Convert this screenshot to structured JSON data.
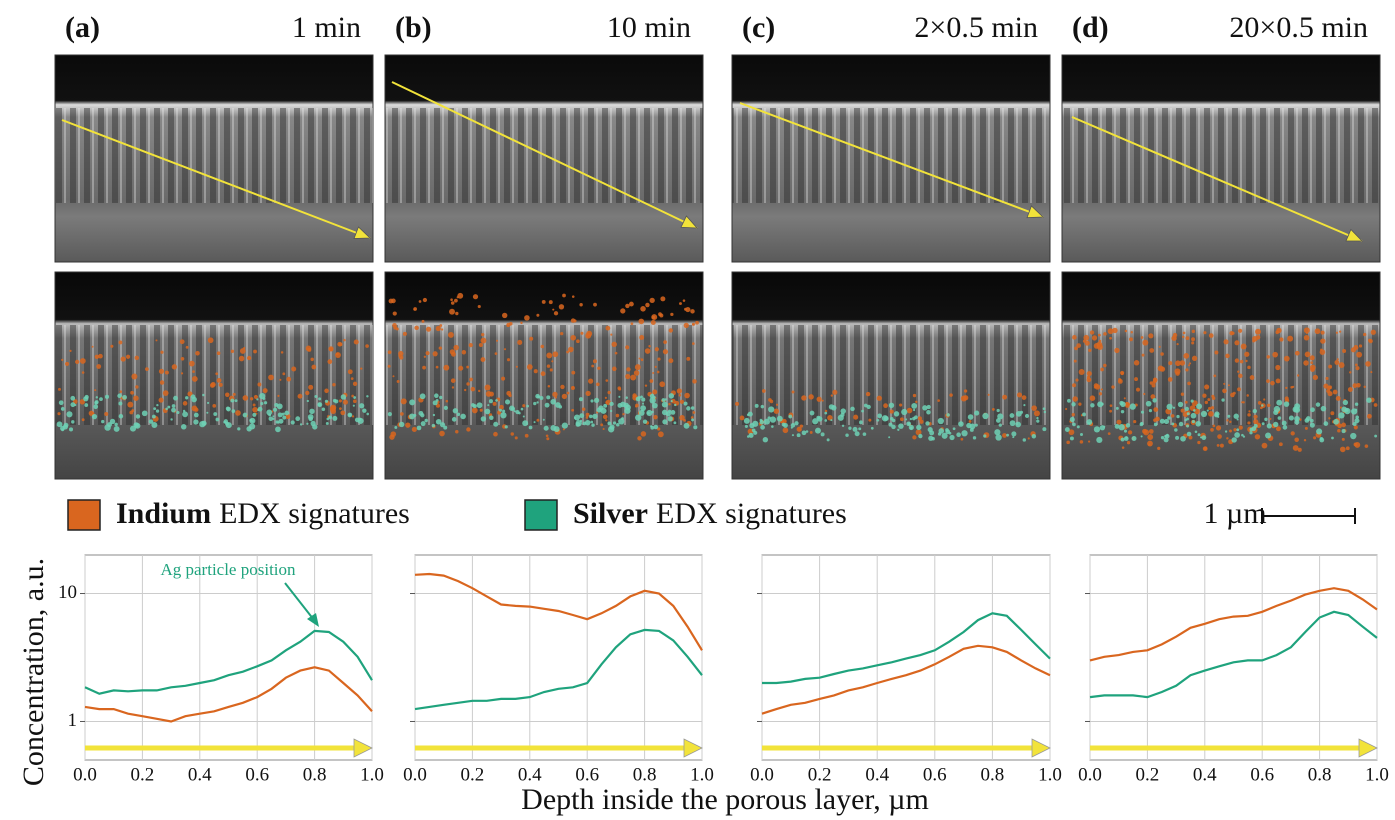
{
  "figure": {
    "panels": [
      {
        "label": "(a)",
        "time": "1 min"
      },
      {
        "label": "(b)",
        "time": "10 min"
      },
      {
        "label": "(c)",
        "time": "2×0.5 min"
      },
      {
        "label": "(d)",
        "time": "20×0.5 min"
      }
    ],
    "legend_suffix": "EDX signatures",
    "scale_bar": "1 µm",
    "ylabel": "Concentration, a.u.",
    "xlabel": "Depth inside the porous layer, µm"
  },
  "chart_data": [
    {
      "type": "line",
      "log_y": true,
      "grid": true,
      "ytick_labels": true,
      "annotation": "Ag particle position",
      "x": [
        0,
        0.05,
        0.1,
        0.15,
        0.2,
        0.25,
        0.3,
        0.35,
        0.4,
        0.45,
        0.5,
        0.55,
        0.6,
        0.65,
        0.7,
        0.75,
        0.8,
        0.85,
        0.9,
        0.95,
        1
      ],
      "series": [
        {
          "name": "Indium",
          "color": "#d9661f",
          "values": [
            1.3,
            1.25,
            1.25,
            1.15,
            1.1,
            1.05,
            1.0,
            1.1,
            1.15,
            1.2,
            1.3,
            1.4,
            1.55,
            1.8,
            2.2,
            2.5,
            2.65,
            2.5,
            2.0,
            1.6,
            1.2
          ]
        },
        {
          "name": "Silver",
          "color": "#1fa37d",
          "values": [
            1.85,
            1.65,
            1.75,
            1.72,
            1.75,
            1.75,
            1.85,
            1.9,
            2.0,
            2.1,
            2.3,
            2.45,
            2.7,
            3.0,
            3.6,
            4.2,
            5.1,
            5.0,
            4.2,
            3.2,
            2.1
          ]
        }
      ],
      "xlim": [
        0,
        1
      ],
      "xticks": [
        {
          "value": 0,
          "label": "0.0"
        },
        0.2,
        0.4,
        0.6,
        0.8,
        {
          "value": 1,
          "label": "1.0"
        }
      ],
      "ylim": [
        0.5,
        20
      ],
      "yticks": [
        1,
        10
      ]
    },
    {
      "type": "line",
      "log_y": true,
      "grid": true,
      "ytick_labels": false,
      "x": [
        0,
        0.05,
        0.1,
        0.15,
        0.2,
        0.25,
        0.3,
        0.35,
        0.4,
        0.45,
        0.5,
        0.55,
        0.6,
        0.65,
        0.7,
        0.75,
        0.8,
        0.85,
        0.9,
        0.95,
        1
      ],
      "series": [
        {
          "color": "#d9661f",
          "values": [
            14,
            14.2,
            13.8,
            12.5,
            11,
            9.5,
            8.2,
            8,
            7.9,
            7.6,
            7.3,
            6.8,
            6.3,
            7,
            8,
            9.5,
            10.5,
            10,
            8,
            5.5,
            3.6
          ]
        },
        {
          "color": "#1fa37d",
          "values": [
            1.25,
            1.3,
            1.35,
            1.4,
            1.45,
            1.45,
            1.5,
            1.5,
            1.55,
            1.7,
            1.8,
            1.85,
            2.0,
            2.8,
            3.8,
            4.8,
            5.2,
            5.1,
            4.3,
            3.2,
            2.3
          ]
        }
      ],
      "xlim": [
        0,
        1
      ],
      "xticks": [
        {
          "value": 0,
          "label": "0.0"
        },
        0.2,
        0.4,
        0.6,
        0.8,
        {
          "value": 1,
          "label": "1.0"
        }
      ],
      "ylim": [
        0.5,
        20
      ],
      "yticks": [
        1,
        10
      ]
    },
    {
      "type": "line",
      "log_y": true,
      "grid": true,
      "ytick_labels": false,
      "x": [
        0,
        0.05,
        0.1,
        0.15,
        0.2,
        0.25,
        0.3,
        0.35,
        0.4,
        0.45,
        0.5,
        0.55,
        0.6,
        0.65,
        0.7,
        0.75,
        0.8,
        0.85,
        0.9,
        0.95,
        1
      ],
      "series": [
        {
          "color": "#d9661f",
          "values": [
            1.15,
            1.25,
            1.35,
            1.4,
            1.5,
            1.6,
            1.75,
            1.85,
            2.0,
            2.15,
            2.3,
            2.5,
            2.8,
            3.2,
            3.7,
            3.9,
            3.8,
            3.5,
            3.0,
            2.6,
            2.3
          ]
        },
        {
          "color": "#1fa37d",
          "values": [
            2.0,
            2.0,
            2.05,
            2.15,
            2.2,
            2.35,
            2.5,
            2.6,
            2.75,
            2.9,
            3.1,
            3.3,
            3.6,
            4.2,
            5.0,
            6.2,
            7.0,
            6.7,
            5.2,
            4.0,
            3.1
          ]
        }
      ],
      "xlim": [
        0,
        1
      ],
      "xticks": [
        {
          "value": 0,
          "label": "0.0"
        },
        0.2,
        0.4,
        0.6,
        0.8,
        {
          "value": 1,
          "label": "1.0"
        }
      ],
      "ylim": [
        0.5,
        20
      ],
      "yticks": [
        1,
        10
      ]
    },
    {
      "type": "line",
      "log_y": true,
      "grid": true,
      "ytick_labels": false,
      "x": [
        0,
        0.05,
        0.1,
        0.15,
        0.2,
        0.25,
        0.3,
        0.35,
        0.4,
        0.45,
        0.5,
        0.55,
        0.6,
        0.65,
        0.7,
        0.75,
        0.8,
        0.85,
        0.9,
        0.95,
        1
      ],
      "series": [
        {
          "color": "#d9661f",
          "values": [
            3.0,
            3.2,
            3.3,
            3.5,
            3.6,
            4.0,
            4.6,
            5.4,
            5.8,
            6.3,
            6.6,
            6.7,
            7.2,
            8.0,
            8.8,
            9.8,
            10.5,
            11.0,
            10.5,
            9.0,
            7.5
          ]
        },
        {
          "color": "#1fa37d",
          "values": [
            1.55,
            1.6,
            1.6,
            1.6,
            1.55,
            1.7,
            1.9,
            2.3,
            2.5,
            2.7,
            2.9,
            3.0,
            3.0,
            3.3,
            3.8,
            5.0,
            6.5,
            7.2,
            6.8,
            5.5,
            4.5
          ]
        }
      ],
      "xlim": [
        0,
        1
      ],
      "xticks": [
        {
          "value": 0,
          "label": "0.0"
        },
        0.2,
        0.4,
        0.6,
        0.8,
        {
          "value": 1,
          "label": "1.0"
        }
      ],
      "ylim": [
        0.5,
        20
      ],
      "yticks": [
        1,
        10
      ]
    }
  ]
}
